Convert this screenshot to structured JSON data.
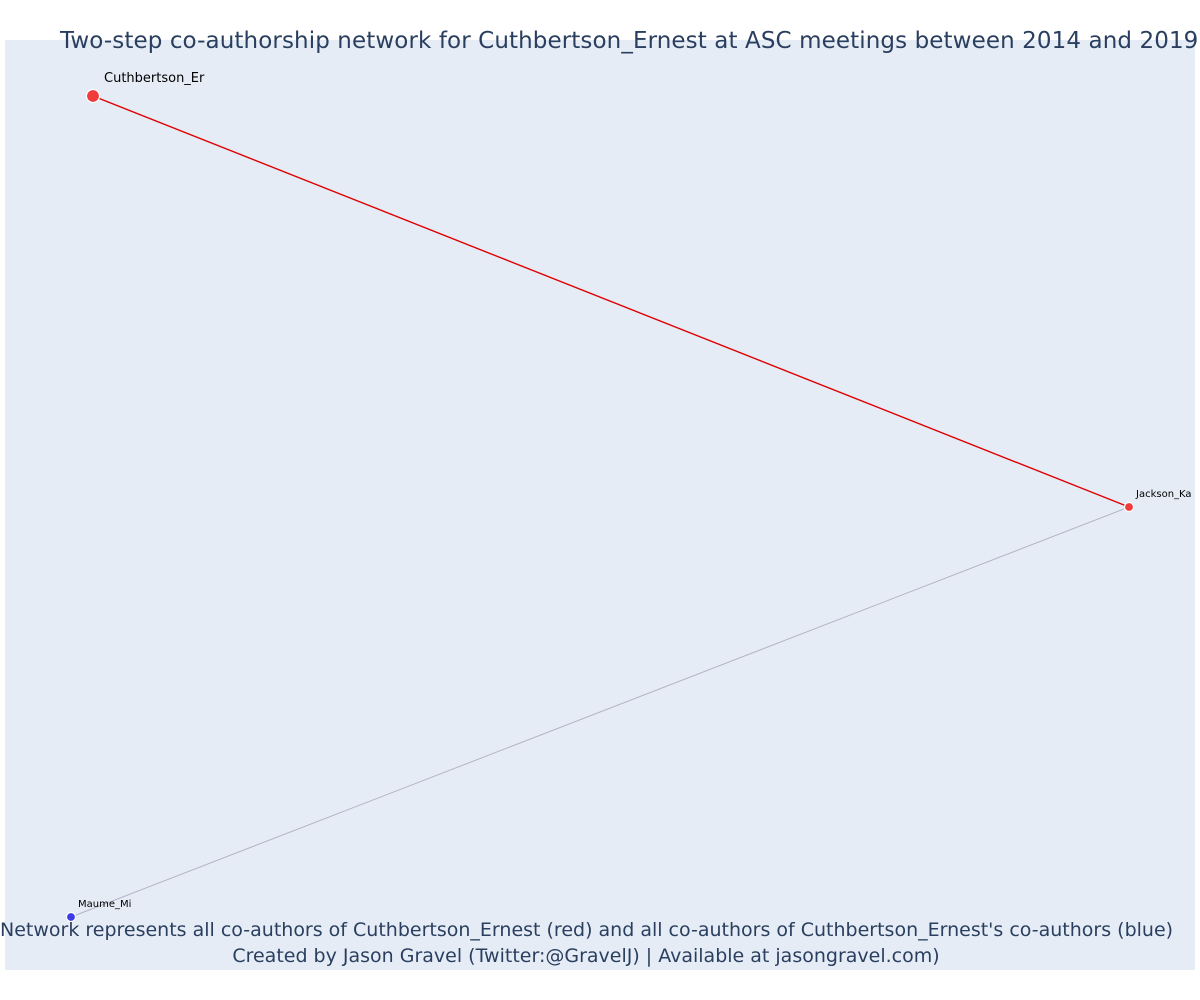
{
  "title": "Two-step co-authorship network for Cuthbertson_Ernest at ASC meetings between 2014 and 2019",
  "caption": {
    "line1": "Network represents all co-authors of Cuthbertson_Ernest (red) and all co-authors of Cuthbertson_Ernest's co-authors (blue)",
    "line2": "Created by Jason Gravel (Twitter:@GravelJ) | Available at jasongravel.com)"
  },
  "colors": {
    "background": "#e5ecf6",
    "text": "#2a3f5f",
    "first_degree": "#ef3b3b",
    "second_degree": "#3b3be8",
    "first_edge": "#e00000",
    "second_edge": "#b4b4c8"
  },
  "network": {
    "nodes": [
      {
        "id": "cuthbertson",
        "label": "Cuthbertson_Er",
        "group": "focal"
      },
      {
        "id": "jackson",
        "label": "Jackson_Ka",
        "group": "co-author"
      },
      {
        "id": "maume",
        "label": "Maume_Mi",
        "group": "co-author-of-co-author"
      }
    ],
    "edges": [
      {
        "source": "cuthbertson",
        "target": "jackson",
        "type": "first-degree"
      },
      {
        "source": "jackson",
        "target": "maume",
        "type": "second-degree"
      }
    ]
  }
}
